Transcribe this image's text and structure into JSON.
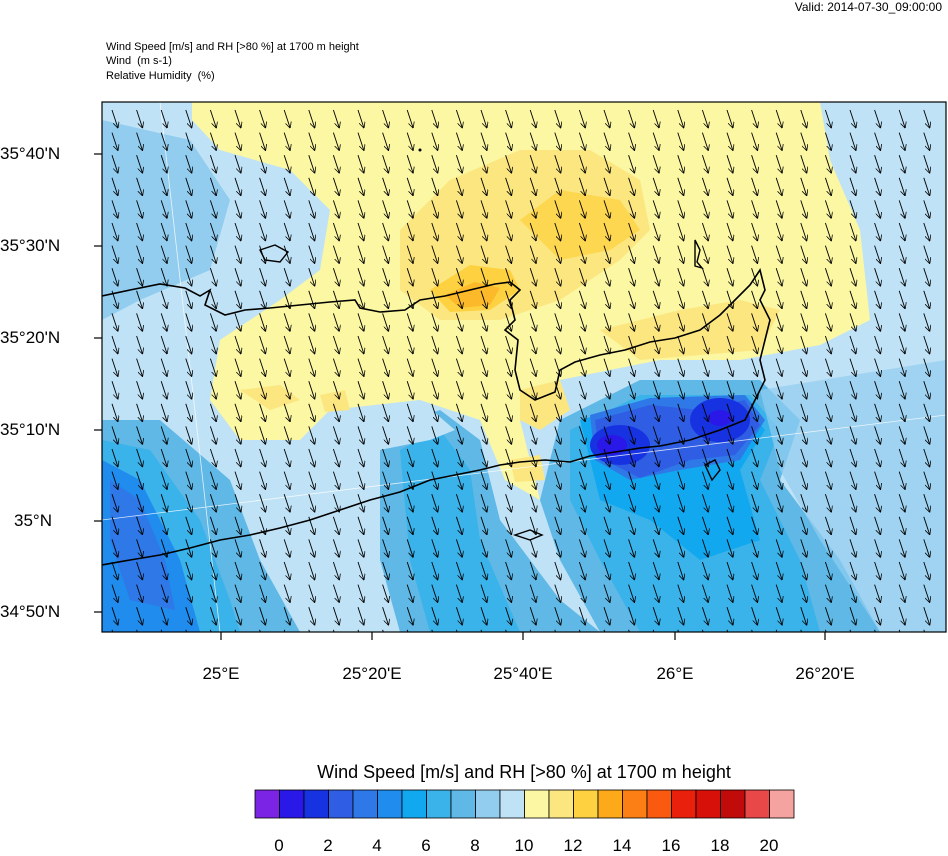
{
  "valid_text": "Valid: 2014-07-30_09:00:00",
  "header": {
    "line1": "Wind Speed [m/s] and RH [>80 %] at 1700 m height",
    "line2_name": "Wind",
    "line2_units": "(m s-1)",
    "line3_name": "Relative Humidity",
    "line3_units": "(%)"
  },
  "axes": {
    "lat_labels": [
      "35°40'N",
      "35°30'N",
      "35°20'N",
      "35°10'N",
      "35°N",
      "34°50'N"
    ],
    "lon_labels": [
      "25°E",
      "25°20'E",
      "25°40'E",
      "26°E",
      "26°20'E"
    ]
  },
  "colorbar": {
    "title": "Wind Speed [m/s] and RH [>80 %] at 1700 m height",
    "tick_labels": [
      "0",
      "2",
      "4",
      "6",
      "8",
      "10",
      "12",
      "14",
      "16",
      "18",
      "20"
    ],
    "colors": [
      "#7b24e6",
      "#2a18e8",
      "#1732e0",
      "#2f5ee4",
      "#2f78e8",
      "#1f8cee",
      "#12a8f0",
      "#3ab2ea",
      "#5fb8e6",
      "#92cdef",
      "#bfe2f6",
      "#fbf7a3",
      "#fce680",
      "#fdd140",
      "#fca91a",
      "#fb7f14",
      "#fa5a10",
      "#e8200c",
      "#d8100a",
      "#c00b0a",
      "#e84848",
      "#f5a3a0"
    ]
  },
  "field": {
    "background": "#bfe2f6",
    "wind_direction": "from north-west (arrows pointing south-east)"
  }
}
